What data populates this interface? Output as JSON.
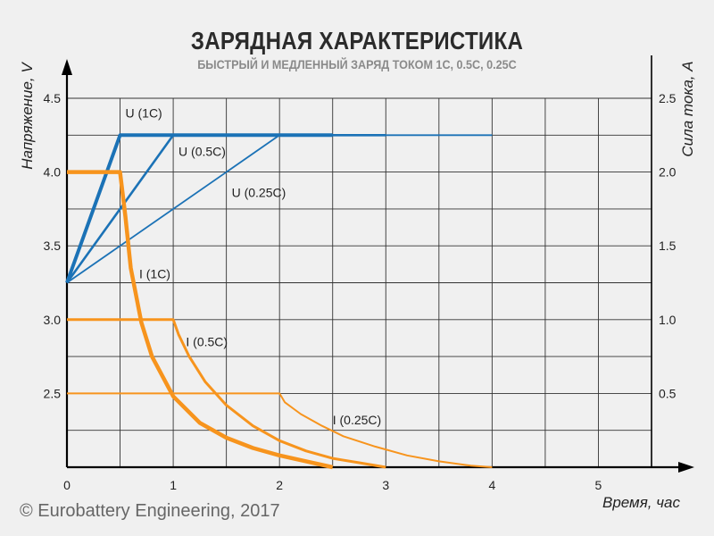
{
  "chart_data": {
    "type": "line",
    "title": "ЗАРЯДНАЯ ХАРАКТЕРИСТИКА",
    "subtitle": "БЫСТРЫЙ И МЕДЛЕННЫЙ ЗАРЯД ТОКОМ 1С, 0.5С, 0.25С",
    "xlabel": "Время, час",
    "ylabel_left": "Напряжение, V",
    "ylabel_right": "Сила тока, A",
    "xlim": [
      0,
      5.5
    ],
    "ylim_left": [
      2.0,
      4.5
    ],
    "ylim_right": [
      0,
      2.5
    ],
    "x_ticks": [
      "0",
      "1",
      "2",
      "3",
      "4",
      "5"
    ],
    "y_left_ticks": [
      "2.5",
      "3.0",
      "3.5",
      "4.0",
      "4.5"
    ],
    "y_right_ticks": [
      "0.5",
      "1.0",
      "1.5",
      "2.0",
      "2.5"
    ],
    "grid": true,
    "colors": {
      "voltage": "#1b72b6",
      "current": "#f7941d",
      "grid": "#333333",
      "axis": "#000000"
    },
    "series": [
      {
        "name": "U (1C)",
        "axis": "left",
        "kind": "voltage",
        "x": [
          0,
          0.5,
          2.5
        ],
        "y": [
          3.25,
          4.25,
          4.25
        ]
      },
      {
        "name": "U (0.5C)",
        "axis": "left",
        "kind": "voltage",
        "x": [
          0,
          1,
          3
        ],
        "y": [
          3.25,
          4.25,
          4.25
        ]
      },
      {
        "name": "U (0.25C)",
        "axis": "left",
        "kind": "voltage",
        "x": [
          0,
          2,
          4
        ],
        "y": [
          3.25,
          4.25,
          4.25
        ]
      },
      {
        "name": "I (1C)",
        "axis": "right",
        "kind": "current",
        "x": [
          0,
          0.5,
          0.55,
          0.6,
          0.7,
          0.8,
          1.0,
          1.25,
          1.5,
          1.75,
          2.0,
          2.25,
          2.5
        ],
        "y": [
          2.0,
          2.0,
          1.7,
          1.35,
          0.98,
          0.75,
          0.48,
          0.3,
          0.2,
          0.13,
          0.08,
          0.04,
          0.0
        ]
      },
      {
        "name": "I (0.5C)",
        "axis": "right",
        "kind": "current",
        "x": [
          0,
          1.0,
          1.05,
          1.15,
          1.3,
          1.5,
          1.75,
          2.0,
          2.25,
          2.5,
          2.75,
          3.0
        ],
        "y": [
          1.0,
          1.0,
          0.9,
          0.75,
          0.58,
          0.42,
          0.28,
          0.18,
          0.11,
          0.06,
          0.03,
          0.0
        ]
      },
      {
        "name": "I (0.25C)",
        "axis": "right",
        "kind": "current",
        "x": [
          0,
          2.0,
          2.05,
          2.2,
          2.4,
          2.6,
          2.9,
          3.2,
          3.5,
          3.8,
          4.0
        ],
        "y": [
          0.5,
          0.5,
          0.44,
          0.36,
          0.28,
          0.21,
          0.14,
          0.08,
          0.04,
          0.01,
          0.0
        ]
      }
    ],
    "labels": [
      {
        "text": "U (1C)",
        "x": 0.55,
        "y_left": 4.37
      },
      {
        "text": "U (0.5C)",
        "x": 1.05,
        "y_left": 4.11
      },
      {
        "text": "U (0.25C)",
        "x": 1.55,
        "y_left": 3.83
      },
      {
        "text": "I (1C)",
        "x": 0.68,
        "y_right": 1.28
      },
      {
        "text": "I (0.5C)",
        "x": 1.12,
        "y_right": 0.82
      },
      {
        "text": "I (0.25C)",
        "x": 2.5,
        "y_right": 0.29
      }
    ]
  },
  "copyright": "© Eurobattery Engineering, 2017"
}
